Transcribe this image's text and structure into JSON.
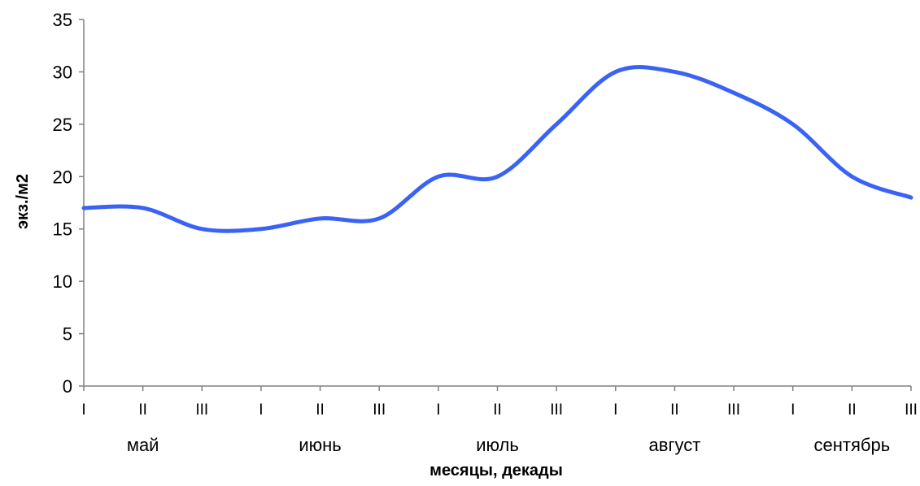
{
  "chart_data": {
    "type": "line",
    "title": "",
    "xlabel": "месяцы, декады",
    "ylabel": "экз./м2",
    "ylim": [
      0,
      35
    ],
    "yticks": [
      0,
      5,
      10,
      15,
      20,
      25,
      30,
      35
    ],
    "grid": false,
    "legend": "none",
    "line_color": "#3a63f5",
    "months": [
      "май",
      "июнь",
      "июль",
      "август",
      "сентябрь"
    ],
    "decade_labels": [
      "I",
      "II",
      "III"
    ],
    "x": [
      "I",
      "II",
      "III",
      "I",
      "II",
      "III",
      "I",
      "II",
      "III",
      "I",
      "II",
      "III",
      "I",
      "II",
      "III"
    ],
    "series": [
      {
        "values": [
          17,
          17,
          15,
          15,
          16,
          16,
          20,
          20,
          25,
          30,
          30,
          28,
          25,
          20,
          18
        ]
      }
    ]
  }
}
